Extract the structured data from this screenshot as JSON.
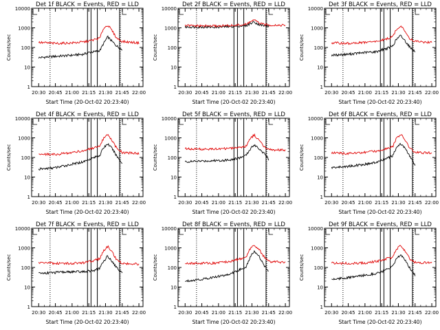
{
  "layout": {
    "rows": 3,
    "cols": 3
  },
  "colors": {
    "events": "#000000",
    "lld": "#e00000",
    "axes": "#000000"
  },
  "y_tick_labels": [
    "1",
    "10",
    "100",
    "1000",
    "10000"
  ],
  "x_tick_labels": [
    "20:30",
    "20:45",
    "21:00",
    "21:15",
    "21:30",
    "21:45",
    "22:00"
  ],
  "chart_data": [
    {
      "type": "line",
      "title": "Det 1f BLACK = Events, RED = LLD",
      "xlabel": "Start Time (20-Oct-02 20:23:40)",
      "ylabel": "Counts/sec",
      "yscale": "log",
      "ylim": [
        1,
        10000
      ],
      "xlim": [
        "20:23:40",
        "22:03:40"
      ],
      "series": [
        {
          "name": "Events",
          "color": "#000000",
          "x": [
            "20:30",
            "20:45",
            "21:00",
            "21:10",
            "21:15",
            "21:20",
            "21:25",
            "21:28",
            "21:32",
            "21:36",
            "21:40",
            "21:45"
          ],
          "values": [
            30,
            35,
            40,
            45,
            55,
            60,
            70,
            150,
            350,
            200,
            120,
            75
          ]
        },
        {
          "name": "LLD",
          "color": "#e00000",
          "x": [
            "20:30",
            "20:45",
            "21:00",
            "21:10",
            "21:15",
            "21:20",
            "21:25",
            "21:28",
            "21:32",
            "21:36",
            "21:40",
            "21:45",
            "22:00"
          ],
          "values": [
            180,
            160,
            170,
            190,
            210,
            250,
            300,
            900,
            1400,
            700,
            300,
            200,
            170
          ]
        }
      ]
    },
    {
      "type": "line",
      "title": "Det 2f BLACK = Events, RED = LLD",
      "xlabel": "Start Time (20-Oct-02 20:23:40)",
      "ylabel": "Counts/sec",
      "yscale": "log",
      "ylim": [
        1,
        10000
      ],
      "xlim": [
        "20:23:40",
        "22:03:40"
      ],
      "series": [
        {
          "name": "Events",
          "color": "#000000",
          "x": [
            "20:30",
            "20:45",
            "21:00",
            "21:10",
            "21:15",
            "21:20",
            "21:25",
            "21:28",
            "21:32",
            "21:36",
            "21:40",
            "21:45"
          ],
          "values": [
            1100,
            1100,
            1100,
            1150,
            1200,
            1250,
            1300,
            1600,
            2000,
            1500,
            1300,
            1200
          ]
        },
        {
          "name": "LLD",
          "color": "#e00000",
          "x": [
            "20:30",
            "20:45",
            "21:00",
            "21:10",
            "21:15",
            "21:20",
            "21:25",
            "21:28",
            "21:32",
            "21:36",
            "21:40",
            "21:45",
            "22:00"
          ],
          "values": [
            1300,
            1250,
            1250,
            1300,
            1350,
            1400,
            1500,
            2000,
            2500,
            1800,
            1500,
            1400,
            1350
          ]
        }
      ]
    },
    {
      "type": "line",
      "title": "Det 3f BLACK = Events, RED = LLD",
      "xlabel": "Start Time (20-Oct-02 20:23:40)",
      "ylabel": "Counts/sec",
      "yscale": "log",
      "ylim": [
        1,
        10000
      ],
      "xlim": [
        "20:23:40",
        "22:03:40"
      ],
      "series": [
        {
          "name": "Events",
          "color": "#000000",
          "x": [
            "20:30",
            "20:45",
            "21:00",
            "21:10",
            "21:15",
            "21:20",
            "21:25",
            "21:28",
            "21:32",
            "21:36",
            "21:40",
            "21:45"
          ],
          "values": [
            40,
            45,
            55,
            60,
            75,
            90,
            120,
            250,
            400,
            220,
            110,
            60
          ]
        },
        {
          "name": "LLD",
          "color": "#e00000",
          "x": [
            "20:30",
            "20:45",
            "21:00",
            "21:10",
            "21:15",
            "21:20",
            "21:25",
            "21:28",
            "21:32",
            "21:36",
            "21:40",
            "21:45",
            "22:00"
          ],
          "values": [
            170,
            160,
            180,
            200,
            230,
            280,
            350,
            800,
            1300,
            650,
            300,
            200,
            180
          ]
        }
      ]
    },
    {
      "type": "line",
      "title": "Det 4f BLACK = Events, RED = LLD",
      "xlabel": "Start Time (20-Oct-02 20:23:40)",
      "ylabel": "Counts/sec",
      "yscale": "log",
      "ylim": [
        1,
        10000
      ],
      "xlim": [
        "20:23:40",
        "22:03:40"
      ],
      "series": [
        {
          "name": "Events",
          "color": "#000000",
          "x": [
            "20:30",
            "20:45",
            "21:00",
            "21:10",
            "21:15",
            "21:20",
            "21:25",
            "21:28",
            "21:32",
            "21:36",
            "21:40",
            "21:45"
          ],
          "values": [
            25,
            30,
            45,
            60,
            80,
            100,
            130,
            300,
            500,
            280,
            120,
            50
          ]
        },
        {
          "name": "LLD",
          "color": "#e00000",
          "x": [
            "20:30",
            "20:45",
            "21:00",
            "21:10",
            "21:15",
            "21:20",
            "21:25",
            "21:28",
            "21:32",
            "21:36",
            "21:40",
            "21:45",
            "22:00"
          ],
          "values": [
            150,
            140,
            180,
            220,
            260,
            300,
            350,
            900,
            1400,
            700,
            300,
            180,
            160
          ]
        }
      ]
    },
    {
      "type": "line",
      "title": "Det 5f BLACK = Events, RED = LLD",
      "xlabel": "Start Time (20-Oct-02 20:23:40)",
      "ylabel": "Counts/sec",
      "yscale": "log",
      "ylim": [
        1,
        10000
      ],
      "xlim": [
        "20:23:40",
        "22:03:40"
      ],
      "series": [
        {
          "name": "Events",
          "color": "#000000",
          "x": [
            "20:30",
            "20:45",
            "21:00",
            "21:10",
            "21:15",
            "21:20",
            "21:25",
            "21:28",
            "21:32",
            "21:36",
            "21:40",
            "21:45"
          ],
          "values": [
            60,
            65,
            70,
            75,
            85,
            100,
            130,
            250,
            450,
            300,
            180,
            80
          ]
        },
        {
          "name": "LLD",
          "color": "#e00000",
          "x": [
            "20:30",
            "20:45",
            "21:00",
            "21:10",
            "21:15",
            "21:20",
            "21:25",
            "21:28",
            "21:32",
            "21:36",
            "21:40",
            "21:45",
            "22:00"
          ],
          "values": [
            280,
            260,
            270,
            290,
            310,
            340,
            380,
            900,
            1400,
            800,
            400,
            250,
            230
          ]
        }
      ]
    },
    {
      "type": "line",
      "title": "Det 6f BLACK = Events, RED = LLD",
      "xlabel": "Start Time (20-Oct-02 20:23:40)",
      "ylabel": "Counts/sec",
      "yscale": "log",
      "ylim": [
        1,
        10000
      ],
      "xlim": [
        "20:23:40",
        "22:03:40"
      ],
      "series": [
        {
          "name": "Events",
          "color": "#000000",
          "x": [
            "20:30",
            "20:45",
            "21:00",
            "21:10",
            "21:15",
            "21:20",
            "21:25",
            "21:28",
            "21:32",
            "21:36",
            "21:40",
            "21:45"
          ],
          "values": [
            30,
            35,
            45,
            55,
            70,
            90,
            120,
            300,
            500,
            300,
            120,
            40
          ]
        },
        {
          "name": "LLD",
          "color": "#e00000",
          "x": [
            "20:30",
            "20:45",
            "21:00",
            "21:10",
            "21:15",
            "21:20",
            "21:25",
            "21:28",
            "21:32",
            "21:36",
            "21:40",
            "21:45",
            "22:00"
          ],
          "values": [
            170,
            160,
            180,
            210,
            250,
            300,
            350,
            900,
            1500,
            800,
            300,
            180,
            170
          ]
        }
      ]
    },
    {
      "type": "line",
      "title": "Det 7f BLACK = Events, RED = LLD",
      "xlabel": "Start Time (20-Oct-02 20:23:40)",
      "ylabel": "Counts/sec",
      "yscale": "log",
      "ylim": [
        1,
        10000
      ],
      "xlim": [
        "20:23:40",
        "22:03:40"
      ],
      "series": [
        {
          "name": "Events",
          "color": "#000000",
          "x": [
            "20:30",
            "20:45",
            "21:00",
            "21:10",
            "21:15",
            "21:20",
            "21:25",
            "21:28",
            "21:32",
            "21:36",
            "21:40",
            "21:45"
          ],
          "values": [
            50,
            55,
            60,
            60,
            65,
            70,
            90,
            200,
            380,
            200,
            100,
            50
          ]
        },
        {
          "name": "LLD",
          "color": "#e00000",
          "x": [
            "20:30",
            "20:45",
            "21:00",
            "21:10",
            "21:15",
            "21:20",
            "21:25",
            "21:28",
            "21:32",
            "21:36",
            "21:40",
            "21:45",
            "22:00"
          ],
          "values": [
            180,
            160,
            160,
            170,
            190,
            230,
            280,
            700,
            1200,
            600,
            250,
            160,
            150
          ]
        }
      ]
    },
    {
      "type": "line",
      "title": "Det 8f BLACK = Events, RED = LLD",
      "xlabel": "Start Time (20-Oct-02 20:23:40)",
      "ylabel": "Counts/sec",
      "yscale": "log",
      "ylim": [
        1,
        10000
      ],
      "xlim": [
        "20:23:40",
        "22:03:40"
      ],
      "series": [
        {
          "name": "Events",
          "color": "#000000",
          "x": [
            "20:30",
            "20:45",
            "21:00",
            "21:10",
            "21:15",
            "21:20",
            "21:25",
            "21:28",
            "21:32",
            "21:36",
            "21:40",
            "21:45"
          ],
          "values": [
            20,
            25,
            35,
            45,
            60,
            80,
            110,
            300,
            700,
            400,
            150,
            60
          ]
        },
        {
          "name": "LLD",
          "color": "#e00000",
          "x": [
            "20:30",
            "20:45",
            "21:00",
            "21:10",
            "21:15",
            "21:20",
            "21:25",
            "21:28",
            "21:32",
            "21:36",
            "21:40",
            "21:45",
            "22:00"
          ],
          "values": [
            170,
            160,
            170,
            200,
            240,
            280,
            330,
            800,
            1400,
            900,
            400,
            200,
            180
          ]
        }
      ]
    },
    {
      "type": "line",
      "title": "Det 9f BLACK = Events, RED = LLD",
      "xlabel": "Start Time (20-Oct-02 20:23:40)",
      "ylabel": "Counts/sec",
      "yscale": "log",
      "ylim": [
        1,
        10000
      ],
      "xlim": [
        "20:23:40",
        "22:03:40"
      ],
      "series": [
        {
          "name": "Events",
          "color": "#000000",
          "x": [
            "20:30",
            "20:45",
            "21:00",
            "21:10",
            "21:15",
            "21:20",
            "21:25",
            "21:28",
            "21:32",
            "21:36",
            "21:40",
            "21:45"
          ],
          "values": [
            25,
            30,
            40,
            50,
            60,
            80,
            110,
            250,
            450,
            250,
            100,
            40
          ]
        },
        {
          "name": "LLD",
          "color": "#e00000",
          "x": [
            "20:30",
            "20:45",
            "21:00",
            "21:10",
            "21:15",
            "21:20",
            "21:25",
            "21:28",
            "21:32",
            "21:36",
            "21:40",
            "21:45",
            "22:00"
          ],
          "values": [
            170,
            160,
            170,
            200,
            240,
            290,
            330,
            800,
            1300,
            700,
            280,
            180,
            170
          ]
        }
      ]
    }
  ],
  "markers": {
    "dotted": [
      "20:40:15",
      "21:43:20"
    ],
    "solid": [
      "21:13:50",
      "21:17:00",
      "21:22:40",
      "21:42:40"
    ]
  }
}
